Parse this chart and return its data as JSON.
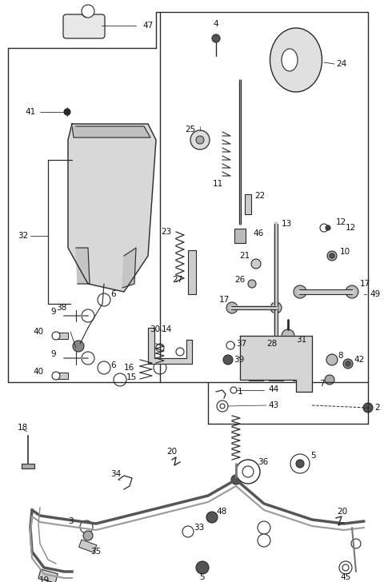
{
  "bg_color": "#ffffff",
  "line_color": "#2a2a2a",
  "text_color": "#111111",
  "fig_width": 4.8,
  "fig_height": 7.28,
  "dpi": 100
}
